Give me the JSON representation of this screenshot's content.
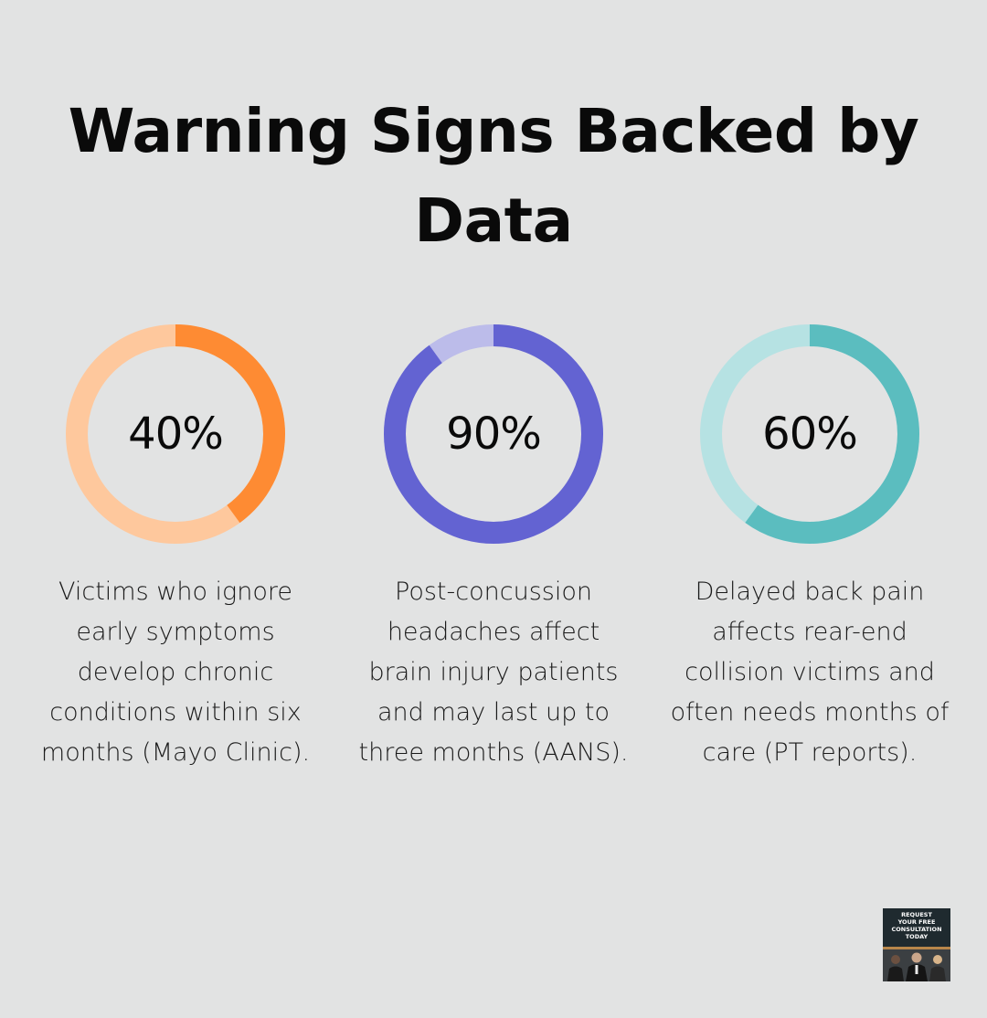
{
  "title": "Warning Signs Backed by Data",
  "chart_data": {
    "type": "donut",
    "title": "Warning Signs Backed by Data",
    "items": [
      {
        "value": 40,
        "label": "40%",
        "description": "Victims who ignore early symptoms develop chronic conditions within six months (Mayo Clinic).",
        "color": "#fe8b33",
        "track_color": "#fec89d"
      },
      {
        "value": 90,
        "label": "90%",
        "description": "Post-concussion headaches affect brain injury patients and may last up to three months (AANS).",
        "color": "#6363d2",
        "track_color": "#bcbcea"
      },
      {
        "value": 60,
        "label": "60%",
        "description": "Delayed back pain affects rear-end collision victims and often needs months of care (PT reports).",
        "color": "#5bbdbf",
        "track_color": "#b6e2e3"
      }
    ]
  },
  "cta": {
    "text": "REQUEST\nYOUR FREE\nCONSULTATION\nTODAY"
  }
}
